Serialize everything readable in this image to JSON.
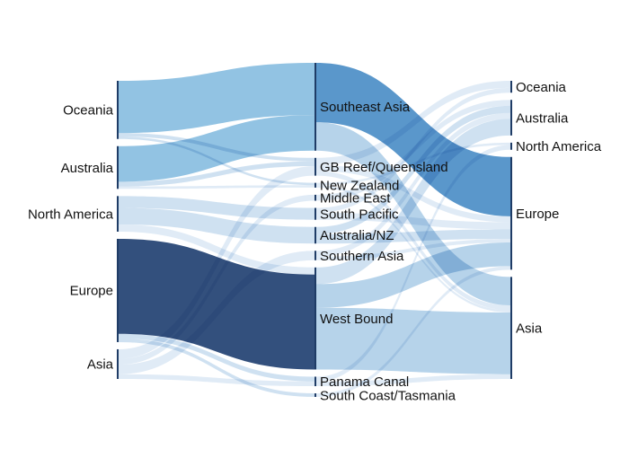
{
  "chart_data": {
    "type": "sankey",
    "title": "",
    "columns": [
      {
        "nodes": [
          {
            "id": "src-oceania",
            "label": "Oceania",
            "color": "#7fb8de"
          },
          {
            "id": "src-australia",
            "label": "Australia",
            "color": "#7fb8de"
          },
          {
            "id": "src-north-america",
            "label": "North America",
            "color": "#c7dcef"
          },
          {
            "id": "src-europe",
            "label": "Europe",
            "color": "#0f3166"
          },
          {
            "id": "src-asia",
            "label": "Asia",
            "color": "#dbe8f5"
          }
        ]
      },
      {
        "nodes": [
          {
            "id": "mid-southeast-asia",
            "label": "Southeast Asia",
            "color": "#3d85c2"
          },
          {
            "id": "mid-gb-reef",
            "label": "GB Reef/Queensland",
            "color": "#dbe8f5"
          },
          {
            "id": "mid-new-zealand",
            "label": "New Zealand",
            "color": "#dbe8f5"
          },
          {
            "id": "mid-middle-east",
            "label": "Middle East",
            "color": "#dbe8f5"
          },
          {
            "id": "mid-south-pacific",
            "label": "South Pacific",
            "color": "#dbe8f5"
          },
          {
            "id": "mid-australia-nz",
            "label": "Australia/NZ",
            "color": "#c7dcef"
          },
          {
            "id": "mid-southern-asia",
            "label": "Southern Asia",
            "color": "#dbe8f5"
          },
          {
            "id": "mid-west-bound",
            "label": "West Bound",
            "color": "#a9cbe6"
          },
          {
            "id": "mid-panama-canal",
            "label": "Panama Canal",
            "color": "#dbe8f5"
          },
          {
            "id": "mid-south-coast",
            "label": "South Coast/Tasmania",
            "color": "#dbe8f5"
          }
        ]
      },
      {
        "nodes": [
          {
            "id": "dst-oceania",
            "label": "Oceania",
            "color": "#c7dcef"
          },
          {
            "id": "dst-australia",
            "label": "Australia",
            "color": "#c7dcef"
          },
          {
            "id": "dst-north-america",
            "label": "North America",
            "color": "#dbe8f5"
          },
          {
            "id": "dst-europe",
            "label": "Europe",
            "color": "#3d85c2"
          },
          {
            "id": "dst-asia",
            "label": "Asia",
            "color": "#a9cbe6"
          }
        ]
      }
    ],
    "links": [
      {
        "source": "src-oceania",
        "target": "mid-southeast-asia",
        "value": 44,
        "color": "#7fb8de"
      },
      {
        "source": "src-oceania",
        "target": "mid-gb-reef",
        "value": 3,
        "color": "#c7dcef"
      },
      {
        "source": "src-oceania",
        "target": "mid-new-zealand",
        "value": 2,
        "color": "#c7dcef"
      },
      {
        "source": "src-australia",
        "target": "mid-southeast-asia",
        "value": 30,
        "color": "#7fb8de"
      },
      {
        "source": "src-australia",
        "target": "mid-gb-reef",
        "value": 4,
        "color": "#c7dcef"
      },
      {
        "source": "src-australia",
        "target": "mid-new-zealand",
        "value": 2,
        "color": "#dbe8f5"
      },
      {
        "source": "src-north-america",
        "target": "mid-south-pacific",
        "value": 10,
        "color": "#c7dcef"
      },
      {
        "source": "src-north-america",
        "target": "mid-australia-nz",
        "value": 14,
        "color": "#c7dcef"
      },
      {
        "source": "src-north-america",
        "target": "mid-west-bound",
        "value": 6,
        "color": "#dbe8f5"
      },
      {
        "source": "src-europe",
        "target": "mid-west-bound",
        "value": 80,
        "color": "#0f3166"
      },
      {
        "source": "src-europe",
        "target": "mid-panama-canal",
        "value": 4,
        "color": "#c7dcef"
      },
      {
        "source": "src-europe",
        "target": "mid-south-coast",
        "value": 3,
        "color": "#c7dcef"
      },
      {
        "source": "src-asia",
        "target": "mid-gb-reef",
        "value": 8,
        "color": "#dbe8f5"
      },
      {
        "source": "src-asia",
        "target": "mid-middle-east",
        "value": 5,
        "color": "#dbe8f5"
      },
      {
        "source": "src-asia",
        "target": "mid-southern-asia",
        "value": 8,
        "color": "#dbe8f5"
      },
      {
        "source": "src-asia",
        "target": "mid-panama-canal",
        "value": 4,
        "color": "#dbe8f5"
      },
      {
        "source": "mid-southeast-asia",
        "target": "dst-europe",
        "value": 50,
        "color": "#3d85c2"
      },
      {
        "source": "mid-southeast-asia",
        "target": "dst-asia",
        "value": 24,
        "color": "#a9cbe6"
      },
      {
        "source": "mid-gb-reef",
        "target": "dst-oceania",
        "value": 6,
        "color": "#dbe8f5"
      },
      {
        "source": "mid-gb-reef",
        "target": "dst-europe",
        "value": 5,
        "color": "#dbe8f5"
      },
      {
        "source": "mid-gb-reef",
        "target": "dst-asia",
        "value": 4,
        "color": "#dbe8f5"
      },
      {
        "source": "mid-new-zealand",
        "target": "dst-north-america",
        "value": 2,
        "color": "#dbe8f5"
      },
      {
        "source": "mid-new-zealand",
        "target": "dst-asia",
        "value": 2,
        "color": "#dbe8f5"
      },
      {
        "source": "mid-middle-east",
        "target": "dst-australia",
        "value": 5,
        "color": "#dbe8f5"
      },
      {
        "source": "mid-south-pacific",
        "target": "dst-oceania",
        "value": 4,
        "color": "#dbe8f5"
      },
      {
        "source": "mid-south-pacific",
        "target": "dst-europe",
        "value": 6,
        "color": "#dbe8f5"
      },
      {
        "source": "mid-australia-nz",
        "target": "dst-australia",
        "value": 6,
        "color": "#c7dcef"
      },
      {
        "source": "mid-australia-nz",
        "target": "dst-europe",
        "value": 8,
        "color": "#c7dcef"
      },
      {
        "source": "mid-southern-asia",
        "target": "dst-australia",
        "value": 5,
        "color": "#dbe8f5"
      },
      {
        "source": "mid-southern-asia",
        "target": "dst-europe",
        "value": 3,
        "color": "#dbe8f5"
      },
      {
        "source": "mid-west-bound",
        "target": "dst-australia",
        "value": 14,
        "color": "#c7dcef"
      },
      {
        "source": "mid-west-bound",
        "target": "dst-europe",
        "value": 20,
        "color": "#a9cbe6"
      },
      {
        "source": "mid-west-bound",
        "target": "dst-asia",
        "value": 52,
        "color": "#a9cbe6"
      },
      {
        "source": "mid-panama-canal",
        "target": "dst-north-america",
        "value": 4,
        "color": "#dbe8f5"
      },
      {
        "source": "mid-panama-canal",
        "target": "dst-asia",
        "value": 4,
        "color": "#dbe8f5"
      },
      {
        "source": "mid-south-coast",
        "target": "dst-europe",
        "value": 3,
        "color": "#dbe8f5"
      }
    ]
  }
}
